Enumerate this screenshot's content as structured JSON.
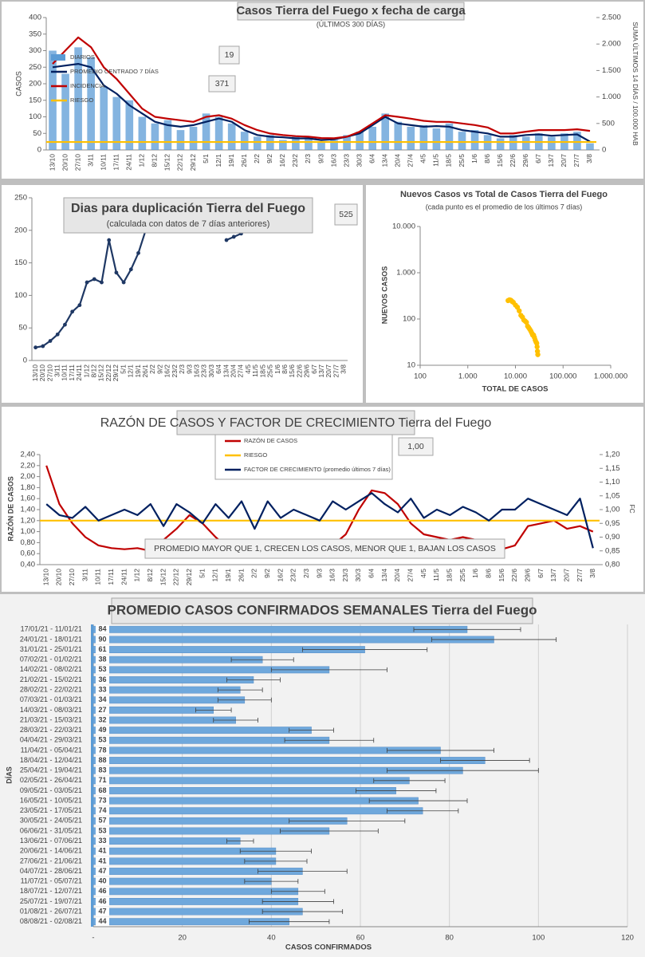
{
  "chart_data": [
    {
      "type": "bar",
      "title": "Casos Tierra del Fuego x fecha de carga",
      "subtitle": "(ÚLTIMOS 300 DÍAS)",
      "ylabel": "CASOS",
      "y2label": "SUMA ÚLTIMOS 14 DÍAS / 100.000 HAB",
      "categories": [
        "13/10",
        "20/10",
        "27/10",
        "3/11",
        "10/11",
        "17/11",
        "24/11",
        "1/12",
        "8/12",
        "15/12",
        "22/12",
        "29/12",
        "5/1",
        "12/1",
        "19/1",
        "26/1",
        "2/2",
        "9/2",
        "16/2",
        "23/2",
        "2/3",
        "9/3",
        "16/3",
        "23/3",
        "30/3",
        "6/4",
        "13/4",
        "20/4",
        "27/4",
        "4/5",
        "11/5",
        "18/5",
        "25/5",
        "1/6",
        "8/6",
        "15/6",
        "22/6",
        "29/6",
        "6/7",
        "13/7",
        "20/7",
        "27/7",
        "3/8"
      ],
      "series": [
        {
          "name": "DIARIOS",
          "type": "bar",
          "color": "#5b9bd5",
          "values": [
            300,
            230,
            310,
            280,
            190,
            160,
            150,
            100,
            80,
            90,
            60,
            70,
            110,
            100,
            80,
            55,
            40,
            45,
            30,
            40,
            35,
            25,
            30,
            45,
            55,
            70,
            110,
            85,
            70,
            75,
            65,
            80,
            55,
            60,
            45,
            35,
            45,
            40,
            50,
            40,
            50,
            55,
            20
          ]
        },
        {
          "name": "PROMEDIO CENTRADO 7 DÍAS",
          "type": "line",
          "color": "#002060",
          "values": [
            250,
            255,
            260,
            250,
            195,
            170,
            135,
            110,
            85,
            75,
            70,
            75,
            85,
            95,
            85,
            60,
            45,
            40,
            38,
            35,
            35,
            30,
            32,
            40,
            50,
            75,
            100,
            80,
            75,
            70,
            72,
            70,
            60,
            55,
            50,
            40,
            40,
            45,
            47,
            43,
            45,
            47,
            25
          ]
        },
        {
          "name": "INCIDENCIA",
          "type": "line",
          "axis": "y2",
          "color": "#c00000",
          "values": [
            1625,
            1880,
            2125,
            1940,
            1560,
            1340,
            1060,
            780,
            625,
            590,
            560,
            530,
            625,
            655,
            590,
            470,
            375,
            310,
            280,
            260,
            250,
            225,
            220,
            250,
            345,
            500,
            655,
            625,
            590,
            550,
            530,
            530,
            500,
            470,
            425,
            310,
            310,
            345,
            375,
            375,
            375,
            390,
            360
          ]
        },
        {
          "name": "RIESGO",
          "type": "line",
          "axis": "y2",
          "color": "#ffc000",
          "value": 150
        }
      ],
      "ylim": [
        0,
        400
      ],
      "yticks": [
        0,
        50,
        100,
        150,
        200,
        250,
        300,
        350,
        400
      ],
      "y2lim": [
        0,
        2500
      ],
      "y2ticks": [
        0,
        500,
        {
          "value": 1000,
          "label": "1.000"
        },
        {
          "value": 1500,
          "label": "1.500"
        },
        {
          "value": 2000,
          "label": "2.000"
        },
        {
          "value": 2500,
          "label": "2.500"
        }
      ],
      "annotations": [
        "19",
        "371"
      ],
      "grid": false
    },
    {
      "type": "line",
      "title": "Dias para duplicación Tierra del Fuego",
      "subtitle": "(calculada con datos de 7 días anteriores)",
      "categories": [
        "13/10",
        "20/10",
        "27/10",
        "3/11",
        "10/11",
        "17/11",
        "24/11",
        "1/12",
        "8/12",
        "15/12",
        "22/12",
        "29/12",
        "5/1",
        "12/1",
        "19/1",
        "26/1",
        "2/2",
        "9/2",
        "16/2",
        "23/2",
        "2/3",
        "9/3",
        "16/3",
        "23/3",
        "30/3",
        "6/4",
        "13/4",
        "20/4",
        "27/4",
        "4/5",
        "11/5",
        "18/5",
        "25/5",
        "1/6",
        "8/6",
        "15/6",
        "22/6",
        "29/6",
        "6/7",
        "13/7",
        "20/7",
        "27/7",
        "3/8"
      ],
      "series": [
        {
          "color": "#1f3864",
          "markers": true,
          "values": [
            20,
            22,
            30,
            40,
            55,
            75,
            85,
            120,
            125,
            120,
            185,
            135,
            120,
            140,
            165,
            200,
            null,
            null,
            null,
            null,
            null,
            null,
            null,
            null,
            null,
            null,
            185,
            190,
            195,
            null,
            null,
            null,
            null,
            null,
            null,
            null,
            null,
            null,
            null,
            null,
            null,
            null,
            null
          ]
        }
      ],
      "ylim": [
        0,
        250
      ],
      "yticks": [
        0,
        50,
        100,
        150,
        200,
        250
      ],
      "annotations": [
        "525"
      ],
      "grid": false
    },
    {
      "type": "scatter",
      "title": "Nuevos Casos vs Total de Casos Tierra del Fuego",
      "subtitle": "(cada punto es el promedio de los últimos 7 días)",
      "xlabel": "TOTAL DE CASOS",
      "ylabel": "NUEVOS CASOS",
      "x": [
        7000,
        7500,
        8000,
        8500,
        9000,
        10000,
        11000,
        12000,
        13000,
        14000,
        15000,
        16000,
        17000,
        18000,
        19000,
        20000,
        21000,
        22000,
        23000,
        24000,
        25000,
        26000,
        27000,
        28000,
        28500,
        29000,
        29500
      ],
      "y": [
        250,
        260,
        255,
        240,
        230,
        200,
        180,
        150,
        120,
        110,
        95,
        90,
        85,
        70,
        65,
        60,
        55,
        50,
        45,
        45,
        40,
        35,
        32,
        30,
        25,
        20,
        17
      ],
      "color": "#ffc000",
      "log_x": true,
      "log_y": true,
      "xlim": [
        100,
        1000000
      ],
      "xticks": [
        100,
        {
          "value": 1000,
          "label": "1.000"
        },
        {
          "value": 10000,
          "label": "10.000"
        },
        {
          "value": 100000,
          "label": "100.000"
        },
        {
          "value": 1000000,
          "label": "1.000.000"
        }
      ],
      "ylim": [
        10,
        10000
      ],
      "yticks": [
        10,
        100,
        {
          "value": 1000,
          "label": "1.000"
        },
        {
          "value": 10000,
          "label": "10.000"
        }
      ],
      "grid": false
    },
    {
      "type": "line",
      "title": "RAZÓN DE CASOS Y FACTOR DE CRECIMIENTO Tierra del Fuego",
      "ylabel": "RAZÓN DE CASOS",
      "y2label": "FC",
      "categories": [
        "13/10",
        "20/10",
        "27/10",
        "3/11",
        "10/11",
        "17/11",
        "24/11",
        "1/12",
        "8/12",
        "15/12",
        "22/12",
        "29/12",
        "5/1",
        "12/1",
        "19/1",
        "26/1",
        "2/2",
        "9/2",
        "16/2",
        "23/2",
        "2/3",
        "9/3",
        "16/3",
        "23/3",
        "30/3",
        "6/4",
        "13/4",
        "20/4",
        "27/4",
        "4/5",
        "11/5",
        "18/5",
        "25/5",
        "1/6",
        "8/6",
        "15/6",
        "22/6",
        "29/6",
        "6/7",
        "13/7",
        "20/7",
        "27/7",
        "3/8"
      ],
      "series": [
        {
          "name": "RAZÓN DE CASOS",
          "color": "#c00000",
          "values": [
            2.2,
            1.5,
            1.15,
            0.9,
            0.75,
            0.7,
            0.68,
            0.7,
            0.65,
            0.85,
            1.05,
            1.3,
            1.15,
            0.9,
            0.7,
            0.65,
            0.6,
            0.55,
            0.6,
            0.65,
            0.75,
            0.72,
            0.75,
            0.95,
            1.4,
            1.75,
            1.7,
            1.5,
            1.15,
            0.95,
            0.9,
            0.85,
            0.9,
            0.85,
            0.75,
            0.68,
            0.75,
            1.1,
            1.15,
            1.2,
            1.05,
            1.1,
            1.0
          ]
        },
        {
          "name": "RIESGO",
          "color": "#ffc000",
          "value": 1.2
        },
        {
          "name": "FACTOR DE CRECIMIENTO (promedio últimos 7 días)",
          "axis": "y2",
          "color": "#002060",
          "values": [
            1.02,
            0.98,
            0.97,
            1.01,
            0.96,
            0.98,
            1.0,
            0.98,
            1.02,
            0.94,
            1.02,
            0.99,
            0.95,
            1.02,
            0.97,
            1.03,
            0.93,
            1.03,
            0.97,
            1.0,
            0.98,
            0.96,
            1.03,
            1.0,
            1.03,
            1.06,
            1.02,
            0.99,
            1.04,
            0.97,
            1.0,
            0.98,
            1.01,
            0.99,
            0.96,
            1.0,
            1.0,
            1.04,
            1.02,
            1.0,
            0.98,
            1.04,
            0.86
          ]
        }
      ],
      "ylim": [
        0.4,
        2.4
      ],
      "yticks": [
        {
          "value": 0.4,
          "label": "0,40"
        },
        {
          "value": 0.6,
          "label": "0,60"
        },
        {
          "value": 0.8,
          "label": "0,80"
        },
        {
          "value": 1.0,
          "label": "1,00"
        },
        {
          "value": 1.2,
          "label": "1,20"
        },
        {
          "value": 1.4,
          "label": "1,40"
        },
        {
          "value": 1.6,
          "label": "1,60"
        },
        {
          "value": 1.8,
          "label": "1,80"
        },
        {
          "value": 2.0,
          "label": "2,00"
        },
        {
          "value": 2.2,
          "label": "2,20"
        },
        {
          "value": 2.4,
          "label": "2,40"
        }
      ],
      "y2lim": [
        0.8,
        1.2
      ],
      "y2ticks": [
        {
          "value": 0.8,
          "label": "0,80"
        },
        {
          "value": 0.85,
          "label": "0,85"
        },
        {
          "value": 0.9,
          "label": "0,90"
        },
        {
          "value": 0.95,
          "label": "0,95"
        },
        {
          "value": 1.0,
          "label": "1,00"
        },
        {
          "value": 1.05,
          "label": "1,05"
        },
        {
          "value": 1.1,
          "label": "1,10"
        },
        {
          "value": 1.15,
          "label": "1,15"
        },
        {
          "value": 1.2,
          "label": "1,20"
        }
      ],
      "annotations": [
        "1,00",
        "PROMEDIO MAYOR QUE 1, CRECEN LOS CASOS, MENOR QUE 1, BAJAN LOS CASOS"
      ],
      "grid": false
    },
    {
      "type": "bar",
      "orientation": "horizontal",
      "title": "PROMEDIO CASOS CONFIRMADOS SEMANALES Tierra del Fuego",
      "xlabel": "CASOS CONFIRMADOS",
      "ylabel": "DÍAS",
      "categories": [
        "17/01/21 - 11/01/21",
        "24/01/21 - 18/01/21",
        "31/01/21 - 25/01/21",
        "07/02/21 - 01/02/21",
        "14/02/21 - 08/02/21",
        "21/02/21 - 15/02/21",
        "28/02/21 - 22/02/21",
        "07/03/21 - 01/03/21",
        "14/03/21 - 08/03/21",
        "21/03/21 - 15/03/21",
        "28/03/21 - 22/03/21",
        "04/04/21 - 29/03/21",
        "11/04/21 - 05/04/21",
        "18/04/21 - 12/04/21",
        "25/04/21 - 19/04/21",
        "02/05/21 - 26/04/21",
        "09/05/21 - 03/05/21",
        "16/05/21 - 10/05/21",
        "23/05/21 - 17/05/21",
        "30/05/21 - 24/05/21",
        "06/06/21 - 31/05/21",
        "13/06/21 - 07/06/21",
        "20/06/21 - 14/06/21",
        "27/06/21 - 21/06/21",
        "04/07/21 - 28/06/21",
        "11/07/21 - 05/07/21",
        "18/07/21 - 12/07/21",
        "25/07/21 - 19/07/21",
        "01/08/21 - 26/07/21",
        "08/08/21 - 02/08/21"
      ],
      "values": [
        84,
        90,
        61,
        38,
        53,
        36,
        33,
        34,
        27,
        32,
        49,
        53,
        78,
        88,
        83,
        71,
        68,
        73,
        74,
        57,
        53,
        33,
        41,
        41,
        47,
        40,
        46,
        46,
        47,
        44
      ],
      "errors": [
        12,
        14,
        14,
        7,
        13,
        6,
        5,
        6,
        4,
        5,
        5,
        10,
        12,
        10,
        17,
        8,
        9,
        11,
        8,
        13,
        11,
        3,
        8,
        7,
        10,
        6,
        6,
        8,
        9,
        9
      ],
      "color": "#6fa8dc",
      "xlim": [
        0,
        120
      ],
      "xticks": [
        {
          "value": 0,
          "label": "-"
        },
        20,
        40,
        60,
        80,
        100,
        120
      ],
      "grid": true
    }
  ]
}
